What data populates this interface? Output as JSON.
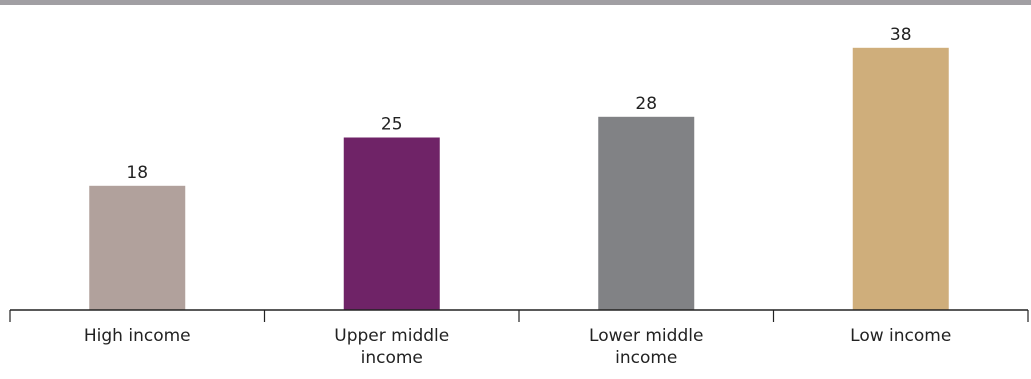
{
  "chart_data": {
    "type": "bar",
    "title": "",
    "xlabel": "",
    "ylabel": "",
    "categories": [
      [
        "High income"
      ],
      [
        "Upper middle",
        "income"
      ],
      [
        "Lower middle",
        "income"
      ],
      [
        "Low income"
      ]
    ],
    "values": [
      18,
      25,
      28,
      38
    ],
    "colors": [
      "#b1a19c",
      "#6f2367",
      "#818285",
      "#cfae7b"
    ],
    "ylim": [
      0,
      40
    ],
    "grid": false,
    "legend": "none",
    "data_labels": true,
    "header_bar_color": "#a19fa3",
    "axis_color": "#222222"
  }
}
